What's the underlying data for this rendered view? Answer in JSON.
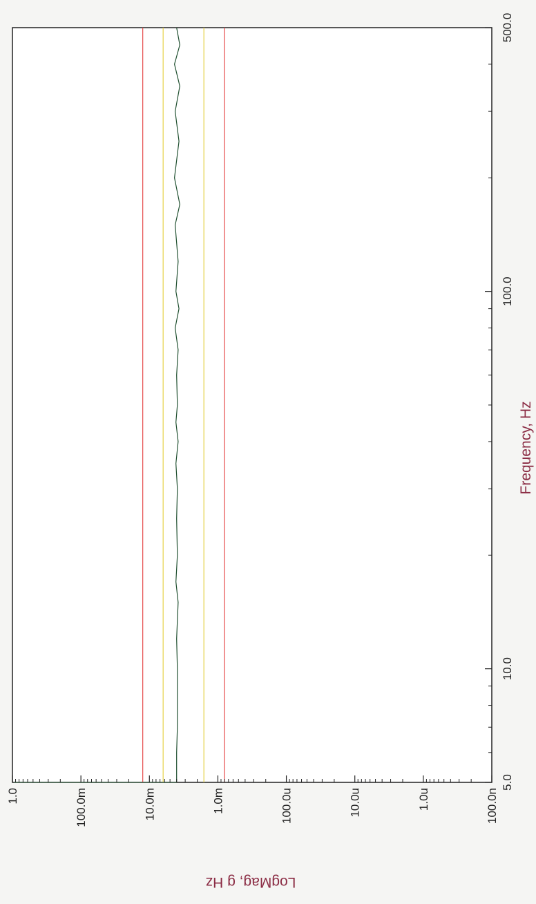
{
  "chart_data": {
    "type": "line",
    "title": "",
    "xlabel": "Frequency, Hz",
    "ylabel": "LogMag, g  Hz",
    "x_scale": "log",
    "y_scale": "log",
    "xlim": [
      5.0,
      500.0
    ],
    "ylim": [
      1e-07,
      1.0
    ],
    "x_ticks": [
      {
        "value": 5.0,
        "label": "5.0"
      },
      {
        "value": 10.0,
        "label": "10.0"
      },
      {
        "value": 100.0,
        "label": "100.0"
      },
      {
        "value": 500.0,
        "label": "500.0"
      }
    ],
    "y_ticks": [
      {
        "value": 1.0,
        "label": "1.0"
      },
      {
        "value": 0.1,
        "label": "100.0m"
      },
      {
        "value": 0.01,
        "label": "10.0m"
      },
      {
        "value": 0.001,
        "label": "1.0m"
      },
      {
        "value": 0.0001,
        "label": "100.0u"
      },
      {
        "value": 1e-05,
        "label": "10.0u"
      },
      {
        "value": 1e-06,
        "label": "1.0u"
      },
      {
        "value": 1e-07,
        "label": "100.0n"
      }
    ],
    "limit_lines": [
      {
        "value": 0.0125,
        "color": "#e64a4a"
      },
      {
        "value": 0.0063,
        "color": "#e6d24a"
      },
      {
        "value": 0.0016,
        "color": "#e6d24a"
      },
      {
        "value": 0.0008,
        "color": "#e64a4a"
      }
    ],
    "series": [
      {
        "color": "#1f4f2f",
        "x": [
          5.0,
          6,
          7,
          8,
          10,
          12,
          15,
          17,
          20,
          25,
          30,
          35,
          40,
          45,
          50,
          60,
          70,
          80,
          90,
          100,
          120,
          150,
          170,
          200,
          250,
          300,
          350,
          400,
          450,
          500
        ],
        "y": [
          0.004,
          0.004,
          0.0039,
          0.0039,
          0.0039,
          0.004,
          0.0038,
          0.0041,
          0.0039,
          0.004,
          0.0039,
          0.0041,
          0.0038,
          0.0041,
          0.0039,
          0.004,
          0.0038,
          0.0042,
          0.0037,
          0.0041,
          0.0038,
          0.0042,
          0.0036,
          0.0043,
          0.0037,
          0.0042,
          0.0036,
          0.0043,
          0.0036,
          0.004
        ]
      }
    ]
  }
}
